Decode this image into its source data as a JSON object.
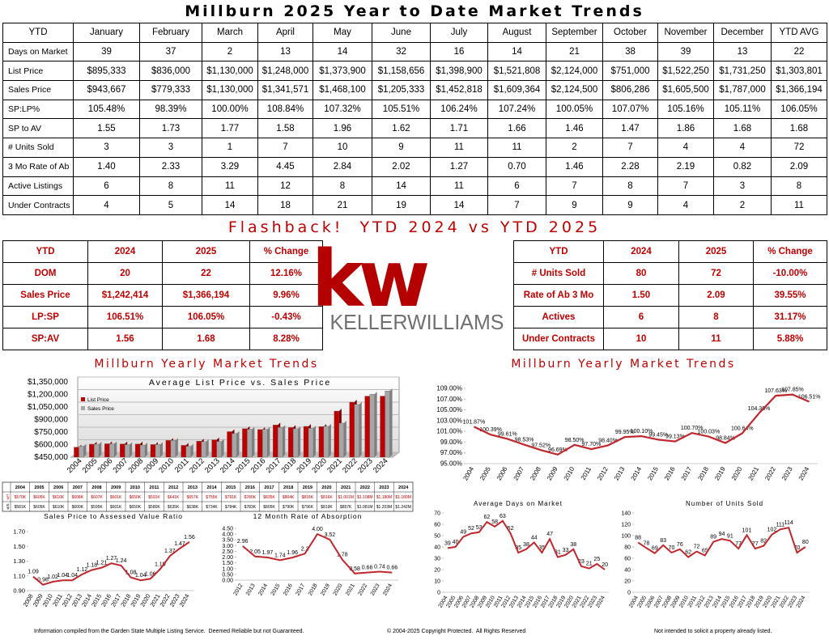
{
  "header": {
    "title": "Millburn 2025 Year to Date Market Trends"
  },
  "table": {
    "header": [
      "YTD",
      "January",
      "February",
      "March",
      "April",
      "May",
      "June",
      "July",
      "August",
      "September",
      "October",
      "November",
      "December",
      "YTD AVG"
    ],
    "rows": [
      [
        "Days on Market",
        "39",
        "37",
        "2",
        "13",
        "14",
        "32",
        "16",
        "14",
        "21",
        "38",
        "39",
        "13",
        "22"
      ],
      [
        "List Price",
        "$895,333",
        "$836,000",
        "$1,130,000",
        "$1,248,000",
        "$1,373,900",
        "$1,158,656",
        "$1,398,900",
        "$1,521,808",
        "$2,124,000",
        "$751,000",
        "$1,522,250",
        "$1,731,250",
        "$1,303,801"
      ],
      [
        "Sales Price",
        "$943,667",
        "$779,333",
        "$1,130,000",
        "$1,341,571",
        "$1,468,100",
        "$1,205,333",
        "$1,452,818",
        "$1,609,364",
        "$2,124,500",
        "$806,286",
        "$1,605,500",
        "$1,787,000",
        "$1,366,194"
      ],
      [
        "SP:LP%",
        "105.48%",
        "98.39%",
        "100.00%",
        "108.84%",
        "107.32%",
        "105.51%",
        "106.24%",
        "107.24%",
        "100.05%",
        "107.07%",
        "105.16%",
        "105.11%",
        "106.05%"
      ],
      [
        "SP to AV",
        "1.55",
        "1.73",
        "1.77",
        "1.58",
        "1.96",
        "1.62",
        "1.71",
        "1.66",
        "1.46",
        "1.47",
        "1.86",
        "1.68",
        "1.68"
      ],
      [
        "# Units Sold",
        "3",
        "3",
        "1",
        "7",
        "10",
        "9",
        "11",
        "11",
        "2",
        "7",
        "4",
        "4",
        "72"
      ],
      [
        "3 Mo Rate of Ab",
        "1.40",
        "2.33",
        "3.29",
        "4.45",
        "2.84",
        "2.02",
        "1.27",
        "0.70",
        "1.46",
        "2.28",
        "2.19",
        "0.82",
        "2.09"
      ],
      [
        "Active Listings",
        "6",
        "8",
        "11",
        "12",
        "8",
        "14",
        "11",
        "6",
        "7",
        "8",
        "7",
        "3",
        "8"
      ],
      [
        "Under Contracts",
        "4",
        "5",
        "14",
        "18",
        "21",
        "19",
        "14",
        "7",
        "9",
        "9",
        "4",
        "2",
        "11"
      ]
    ]
  },
  "flashback": {
    "title": "Flashback!  YTD 2024 vs YTD 2025",
    "left": {
      "header": [
        "YTD",
        "2024",
        "2025",
        "% Change"
      ],
      "rows": [
        [
          "DOM",
          "20",
          "22",
          "12.16%"
        ],
        [
          "Sales Price",
          "$1,242,414",
          "$1,366,194",
          "9.96%"
        ],
        [
          "LP:SP",
          "106.51%",
          "106.05%",
          "-0.43%"
        ],
        [
          "SP:AV",
          "1.56",
          "1.68",
          "8.28%"
        ]
      ]
    },
    "right": {
      "header": [
        "YTD",
        "2024",
        "2025",
        "% Change"
      ],
      "rows": [
        [
          "# Units Sold",
          "80",
          "72",
          "-10.00%"
        ],
        [
          "Rate of Ab 3 Mo",
          "1.50",
          "2.09",
          "39.55%"
        ],
        [
          "Actives",
          "6",
          "8",
          "31.17%"
        ],
        [
          "Under Contracts",
          "10",
          "11",
          "5.88%"
        ]
      ]
    }
  },
  "logo": {
    "mark": "kw",
    "name": "KELLERWILLIAMS"
  },
  "sections": [
    "Millburn Yearly Market Trends",
    "Millburn Yearly Market Trends"
  ],
  "chart_data": [
    {
      "type": "bar",
      "title": "Average List Price vs. Sales Price",
      "legend": "upper left",
      "row_labels": [
        "L/P",
        "S/P"
      ],
      "categories": [
        "2004",
        "2005",
        "2006",
        "2007",
        "2008",
        "2009",
        "2010",
        "2011",
        "2012",
        "2013",
        "2014",
        "2015",
        "2016",
        "2017",
        "2018",
        "2019",
        "2020",
        "2021",
        "2022",
        "2023",
        "2024"
      ],
      "series": [
        {
          "name": "List Price",
          "color": "#c00000",
          "values": [
            570000,
            605000,
            610000,
            608000,
            607000,
            601000,
            650000,
            591000,
            641000,
            657000,
            755000,
            791000,
            780000,
            835000,
            804000,
            818000,
            816000,
            1001000,
            1108000,
            1180000,
            1180000
          ],
          "value_labels": [
            "$570K",
            "$605K",
            "$610K",
            "$608K",
            "$607K",
            "$601K",
            "$650K",
            "$591K",
            "$641K",
            "$657K",
            "$755K",
            "$791K",
            "$780K",
            "$835K",
            "$804K",
            "$818K",
            "$816K",
            "$1.001M",
            "$1.108M",
            "$1.180M",
            "$1.180M"
          ]
        },
        {
          "name": "Sales Price",
          "color": "#a6a6a6",
          "values": [
            581000,
            605000,
            610000,
            600000,
            595000,
            601000,
            650000,
            580000,
            635000,
            638000,
            734000,
            784000,
            783000,
            805000,
            790000,
            796000,
            819000,
            857000,
            1081000,
            1203000,
            1242000
          ],
          "value_labels": [
            "$581K",
            "$605K",
            "$610K",
            "$600K",
            "$595K",
            "$601K",
            "$650K",
            "$580K",
            "$635K",
            "$638K",
            "$734K",
            "$784K",
            "$783K",
            "$805K",
            "$790K",
            "$796K",
            "$819K",
            "$857K",
            "$1.081M",
            "$1.203M",
            "$1.242M"
          ]
        }
      ],
      "ylim": [
        450000,
        1350000
      ],
      "yticks": [
        {
          "value": 450000,
          "label": "$450,000"
        },
        {
          "value": 600000,
          "label": "$600,000"
        },
        {
          "value": 750000,
          "label": "$750,000"
        },
        {
          "value": 900000,
          "label": "$900,000"
        },
        {
          "value": 1050000,
          "label": "$1,050,000"
        },
        {
          "value": 1200000,
          "label": "$1,200,000"
        },
        {
          "value": 1350000,
          "label": "$1,350,000"
        }
      ],
      "grid": true
    },
    {
      "type": "line",
      "color": "#c0282d",
      "categories": [
        "2004",
        "2005",
        "2006",
        "2007",
        "2008",
        "2009",
        "2010",
        "2011",
        "2012",
        "2013",
        "2014",
        "2015",
        "2016",
        "2017",
        "2018",
        "2019",
        "2020",
        "2021",
        "2022",
        "2023",
        "2024"
      ],
      "values": [
        101.87,
        100.39,
        99.61,
        98.53,
        97.52,
        96.69,
        98.5,
        97.7,
        98.4,
        99.95,
        100.1,
        99.45,
        99.13,
        100.7,
        100.03,
        98.84,
        100.64,
        104.36,
        107.63,
        107.85,
        106.51
      ],
      "value_labels": [
        "101.87%",
        "100.39%",
        "99.61%",
        "98.53%",
        "97.52%",
        "96.69%",
        "98.50%",
        "97.70%",
        "98.40%",
        "99.95%",
        "100.10%",
        "99.45%",
        "99.13%",
        "100.70%",
        "100.03%",
        "98.84%",
        "100.64%",
        "104.36%",
        "107.63%",
        "107.85%",
        "106.51%"
      ],
      "ylim": [
        95,
        109
      ],
      "yticks": [
        {
          "value": 95,
          "label": "95.00%"
        },
        {
          "value": 97,
          "label": "97.00%"
        },
        {
          "value": 99,
          "label": "99.00%"
        },
        {
          "value": 101,
          "label": "101.00%"
        },
        {
          "value": 103,
          "label": "103.00%"
        },
        {
          "value": 105,
          "label": "105.00%"
        },
        {
          "value": 107,
          "label": "107.00%"
        },
        {
          "value": 109,
          "label": "109.00%"
        }
      ]
    },
    {
      "type": "line",
      "title": "Sales Price to Assessed Value Ratio",
      "color": "#c0282d",
      "categories": [
        "2008",
        "2009",
        "2010",
        "2011",
        "2012",
        "2013",
        "2014",
        "2015",
        "2016",
        "2017",
        "2018",
        "2019",
        "2020",
        "2021",
        "2022",
        "2023",
        "2024"
      ],
      "values": [
        1.09,
        0.98,
        1.02,
        1.04,
        1.04,
        1.12,
        1.18,
        1.21,
        1.27,
        1.24,
        1.08,
        1.04,
        1.06,
        1.19,
        1.37,
        1.47,
        1.56
      ],
      "ylim": [
        0.9,
        1.7
      ],
      "yticks": [
        {
          "value": 0.9,
          "label": "0.90"
        },
        {
          "value": 1.1,
          "label": "1.10"
        },
        {
          "value": 1.3,
          "label": "1.30"
        },
        {
          "value": 1.5,
          "label": "1.50"
        },
        {
          "value": 1.7,
          "label": "1.70"
        }
      ]
    },
    {
      "type": "line",
      "title": "12 Month Rate of Absorption",
      "color": "#c0282d",
      "categories": [
        "2012",
        "2013",
        "2014",
        "2015",
        "2016",
        "2017",
        "2018",
        "2019",
        "2020",
        "2021",
        "2022",
        "2023",
        "2024"
      ],
      "values": [
        2.96,
        2.05,
        1.97,
        1.74,
        1.96,
        2.3,
        4.0,
        3.52,
        1.78,
        0.58,
        0.66,
        0.74,
        0.66
      ],
      "value_labels": [
        "2.96",
        "2.05",
        "1.97",
        "1.74",
        "1.96",
        "2.3",
        "4.00",
        "3.52",
        "1.78",
        "0.58",
        "0.66",
        "0.74",
        "0.66"
      ],
      "ylim": [
        0,
        4.5
      ],
      "yticks": [
        {
          "value": 0,
          "label": "0.00"
        },
        {
          "value": 0.5,
          "label": "0.50"
        },
        {
          "value": 1,
          "label": "1.00"
        },
        {
          "value": 1.5,
          "label": "1.50"
        },
        {
          "value": 2,
          "label": "2.00"
        },
        {
          "value": 2.5,
          "label": "2.50"
        },
        {
          "value": 3,
          "label": "3.00"
        },
        {
          "value": 3.5,
          "label": "3.50"
        },
        {
          "value": 4,
          "label": "4.00"
        },
        {
          "value": 4.5,
          "label": "4.50"
        }
      ]
    },
    {
      "type": "line",
      "title": "Average Days on Market",
      "color": "#c0282d",
      "categories": [
        "2004",
        "2005",
        "2006",
        "2007",
        "2008",
        "2009",
        "2010",
        "2011",
        "2012",
        "2013",
        "2014",
        "2015",
        "2016",
        "2017",
        "2018",
        "2019",
        "2020",
        "2021",
        "2022",
        "2023",
        "2024"
      ],
      "values": [
        39,
        40,
        49,
        52,
        53,
        62,
        58,
        63,
        52,
        35,
        38,
        44,
        35,
        47,
        31,
        33,
        38,
        23,
        21,
        25,
        20
      ],
      "ylim": [
        0,
        70
      ],
      "yticks": [
        0,
        10,
        20,
        30,
        40,
        50,
        60,
        70
      ]
    },
    {
      "type": "line",
      "title": "Number of Units Sold",
      "color": "#c0282d",
      "categories": [
        "2004",
        "2005",
        "2006",
        "2007",
        "2008",
        "2009",
        "2010",
        "2011",
        "2012",
        "2013",
        "2014",
        "2015",
        "2016",
        "2017",
        "2018",
        "2019",
        "2020",
        "2021",
        "2022",
        "2023",
        "2024"
      ],
      "values": [
        88,
        78,
        69,
        83,
        70,
        76,
        62,
        72,
        65,
        89,
        94,
        91,
        77,
        101,
        77,
        82,
        102,
        111,
        114,
        70,
        80
      ],
      "ylim": [
        0,
        140
      ],
      "yticks": [
        0,
        20,
        40,
        60,
        80,
        100,
        120,
        140
      ]
    }
  ],
  "footer": [
    "Information compiled from the Garden State Multiple Listing Service.  Deemed Reliable but not Guaranteed.",
    "© 2004-2025 Copyright Protected.  All Rights Reserved",
    "Not intended to solicit a property already listed."
  ]
}
